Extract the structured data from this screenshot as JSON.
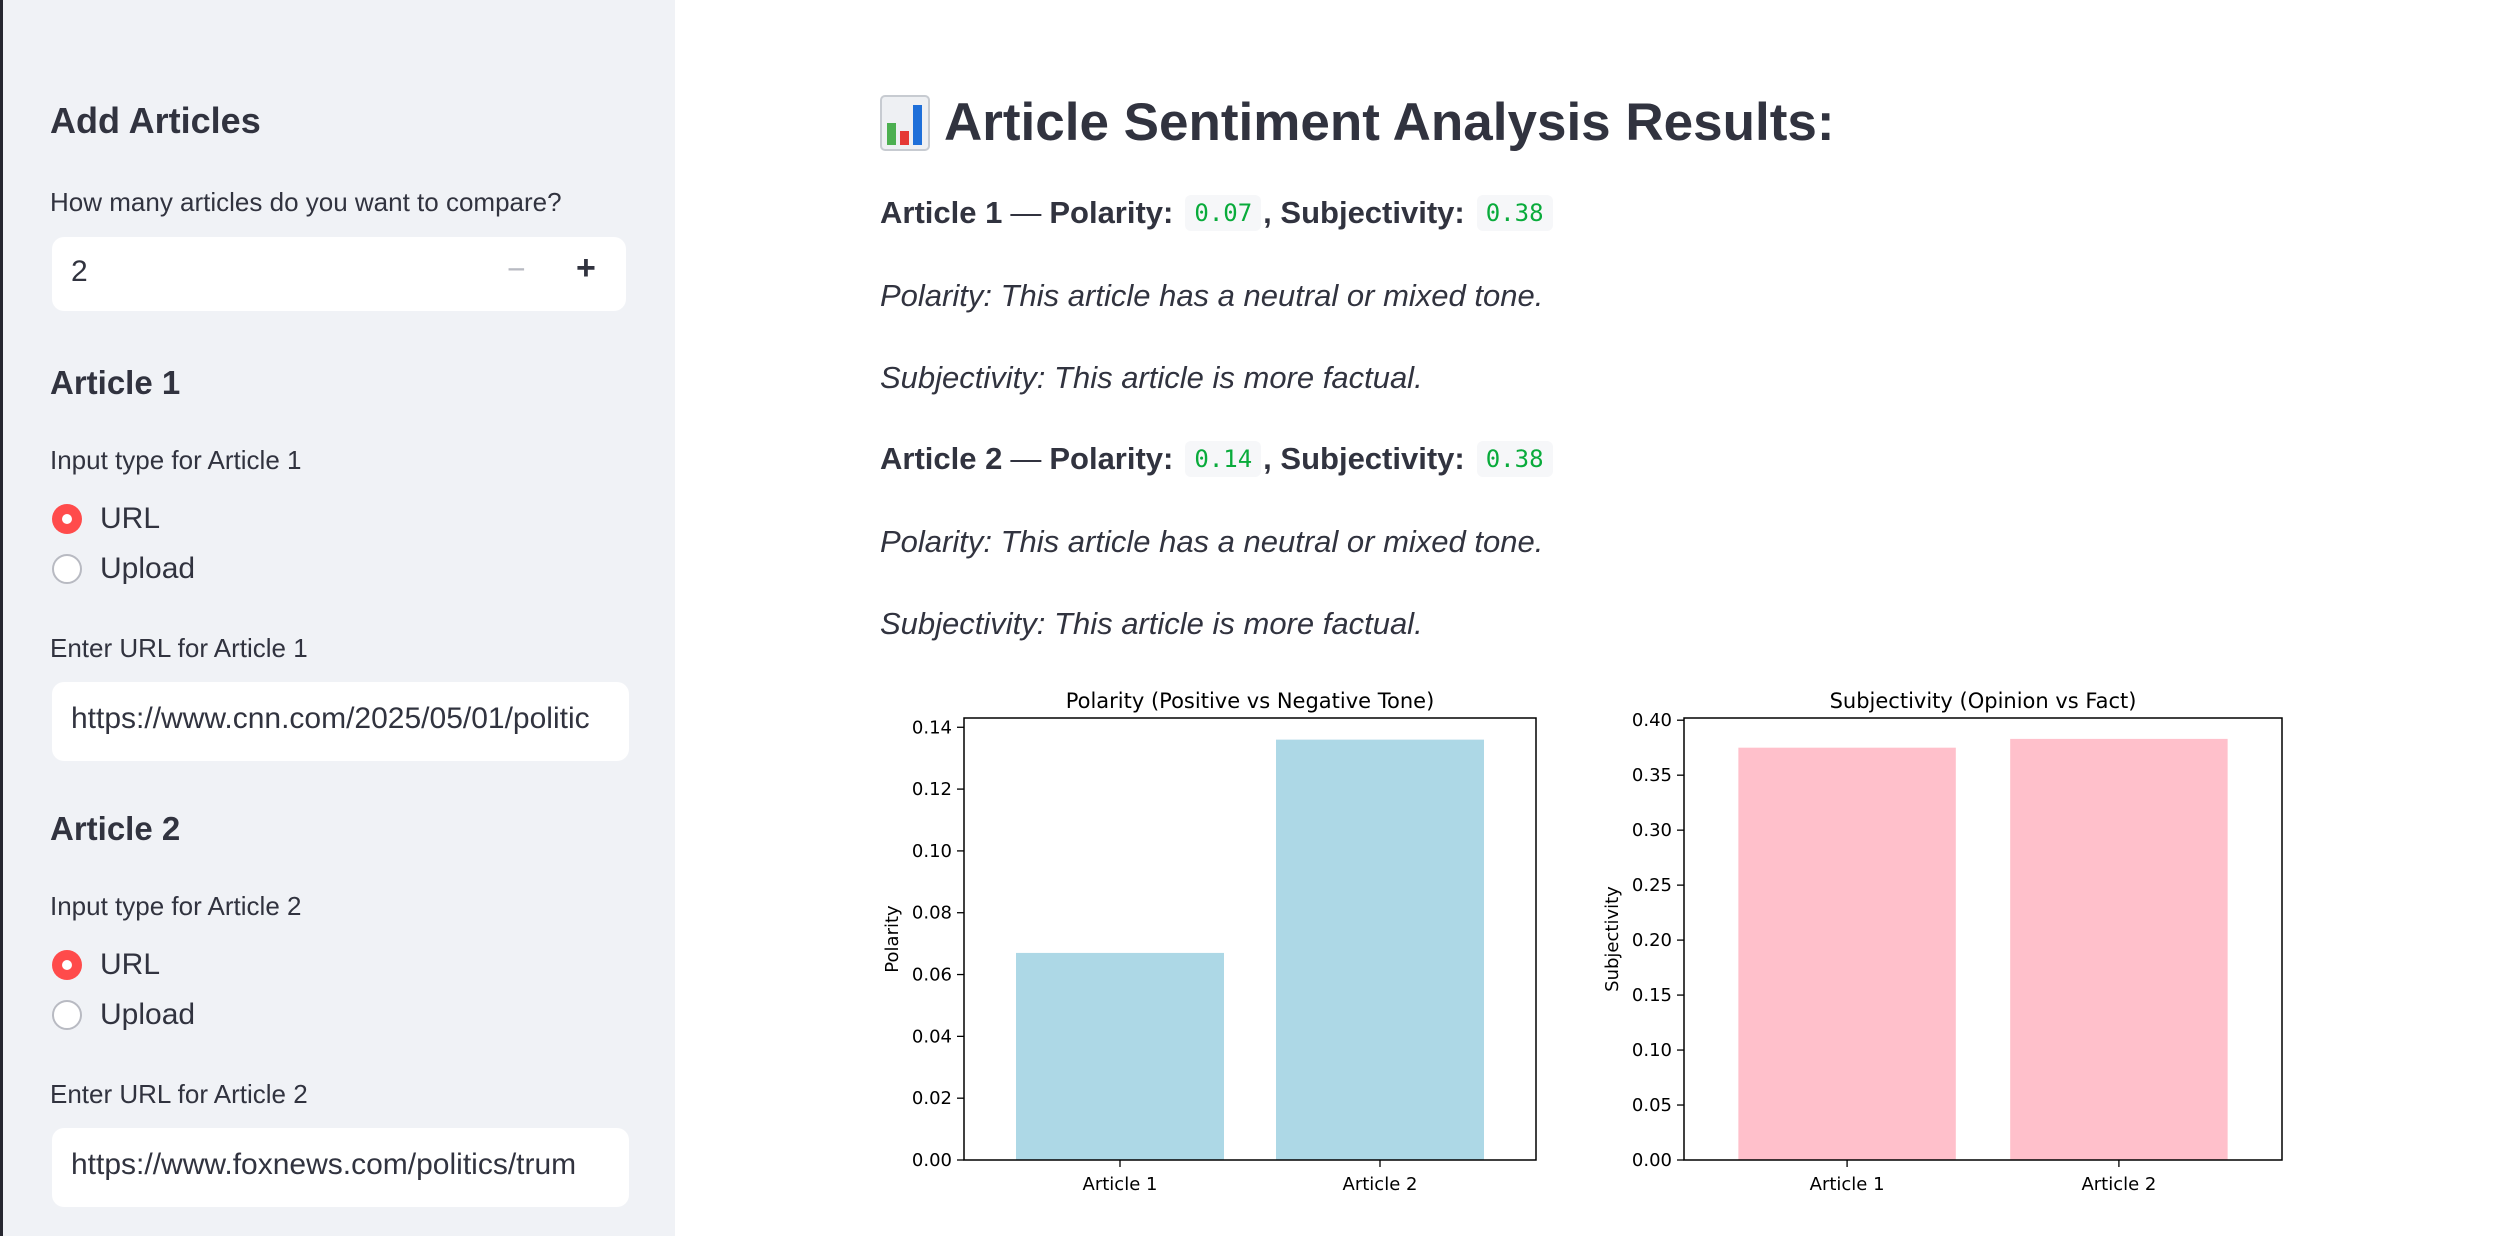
{
  "sidebar": {
    "title": "Add Articles",
    "count_label": "How many articles do you want to compare?",
    "count_value": "2",
    "minus": "−",
    "plus": "+",
    "articles": [
      {
        "heading": "Article 1",
        "input_type_label": "Input type for Article 1",
        "options": [
          "URL",
          "Upload"
        ],
        "selected": "URL",
        "url_label": "Enter URL for Article 1",
        "url_value": "https://www.cnn.com/2025/05/01/politic"
      },
      {
        "heading": "Article 2",
        "input_type_label": "Input type for Article 2",
        "options": [
          "URL",
          "Upload"
        ],
        "selected": "URL",
        "url_label": "Enter URL for Article 2",
        "url_value": "https://www.foxnews.com/politics/trum"
      }
    ]
  },
  "main": {
    "title": "Article Sentiment Analysis Results:",
    "title_icon": "bar-chart-emoji-icon",
    "results": [
      {
        "article": "Article 1",
        "dash": "—",
        "polarity_label": "Polarity:",
        "polarity": "0.07",
        "subjectivity_label": "Subjectivity:",
        "subjectivity": "0.38",
        "polarity_text": "Polarity: This article has a neutral or mixed tone.",
        "subjectivity_text": "Subjectivity: This article is more factual."
      },
      {
        "article": "Article 2",
        "dash": "—",
        "polarity_label": "Polarity:",
        "polarity": "0.14",
        "subjectivity_label": "Subjectivity:",
        "subjectivity": "0.38",
        "polarity_text": "Polarity: This article has a neutral or mixed tone.",
        "subjectivity_text": "Subjectivity: This article is more factual."
      }
    ]
  },
  "colors": {
    "accent": "#ff4b4b",
    "code_text": "#09ab3b",
    "polarity_bar": "#add8e6",
    "subjectivity_bar": "#ffc0cb"
  },
  "chart_data": [
    {
      "type": "bar",
      "title": "Polarity (Positive vs Negative Tone)",
      "categories": [
        "Article 1",
        "Article 2"
      ],
      "values": [
        0.067,
        0.136
      ],
      "xlabel": "",
      "ylabel": "Polarity",
      "ylim": [
        0,
        0.143
      ],
      "yticks": [
        "0.00",
        "0.02",
        "0.04",
        "0.06",
        "0.08",
        "0.10",
        "0.12",
        "0.14"
      ],
      "color": "#add8e6"
    },
    {
      "type": "bar",
      "title": "Subjectivity (Opinion vs Fact)",
      "categories": [
        "Article 1",
        "Article 2"
      ],
      "values": [
        0.375,
        0.383
      ],
      "xlabel": "",
      "ylabel": "Subjectivity",
      "ylim": [
        0,
        0.402
      ],
      "yticks": [
        "0.00",
        "0.05",
        "0.10",
        "0.15",
        "0.20",
        "0.25",
        "0.30",
        "0.35",
        "0.40"
      ],
      "color": "#ffc0cb"
    }
  ]
}
